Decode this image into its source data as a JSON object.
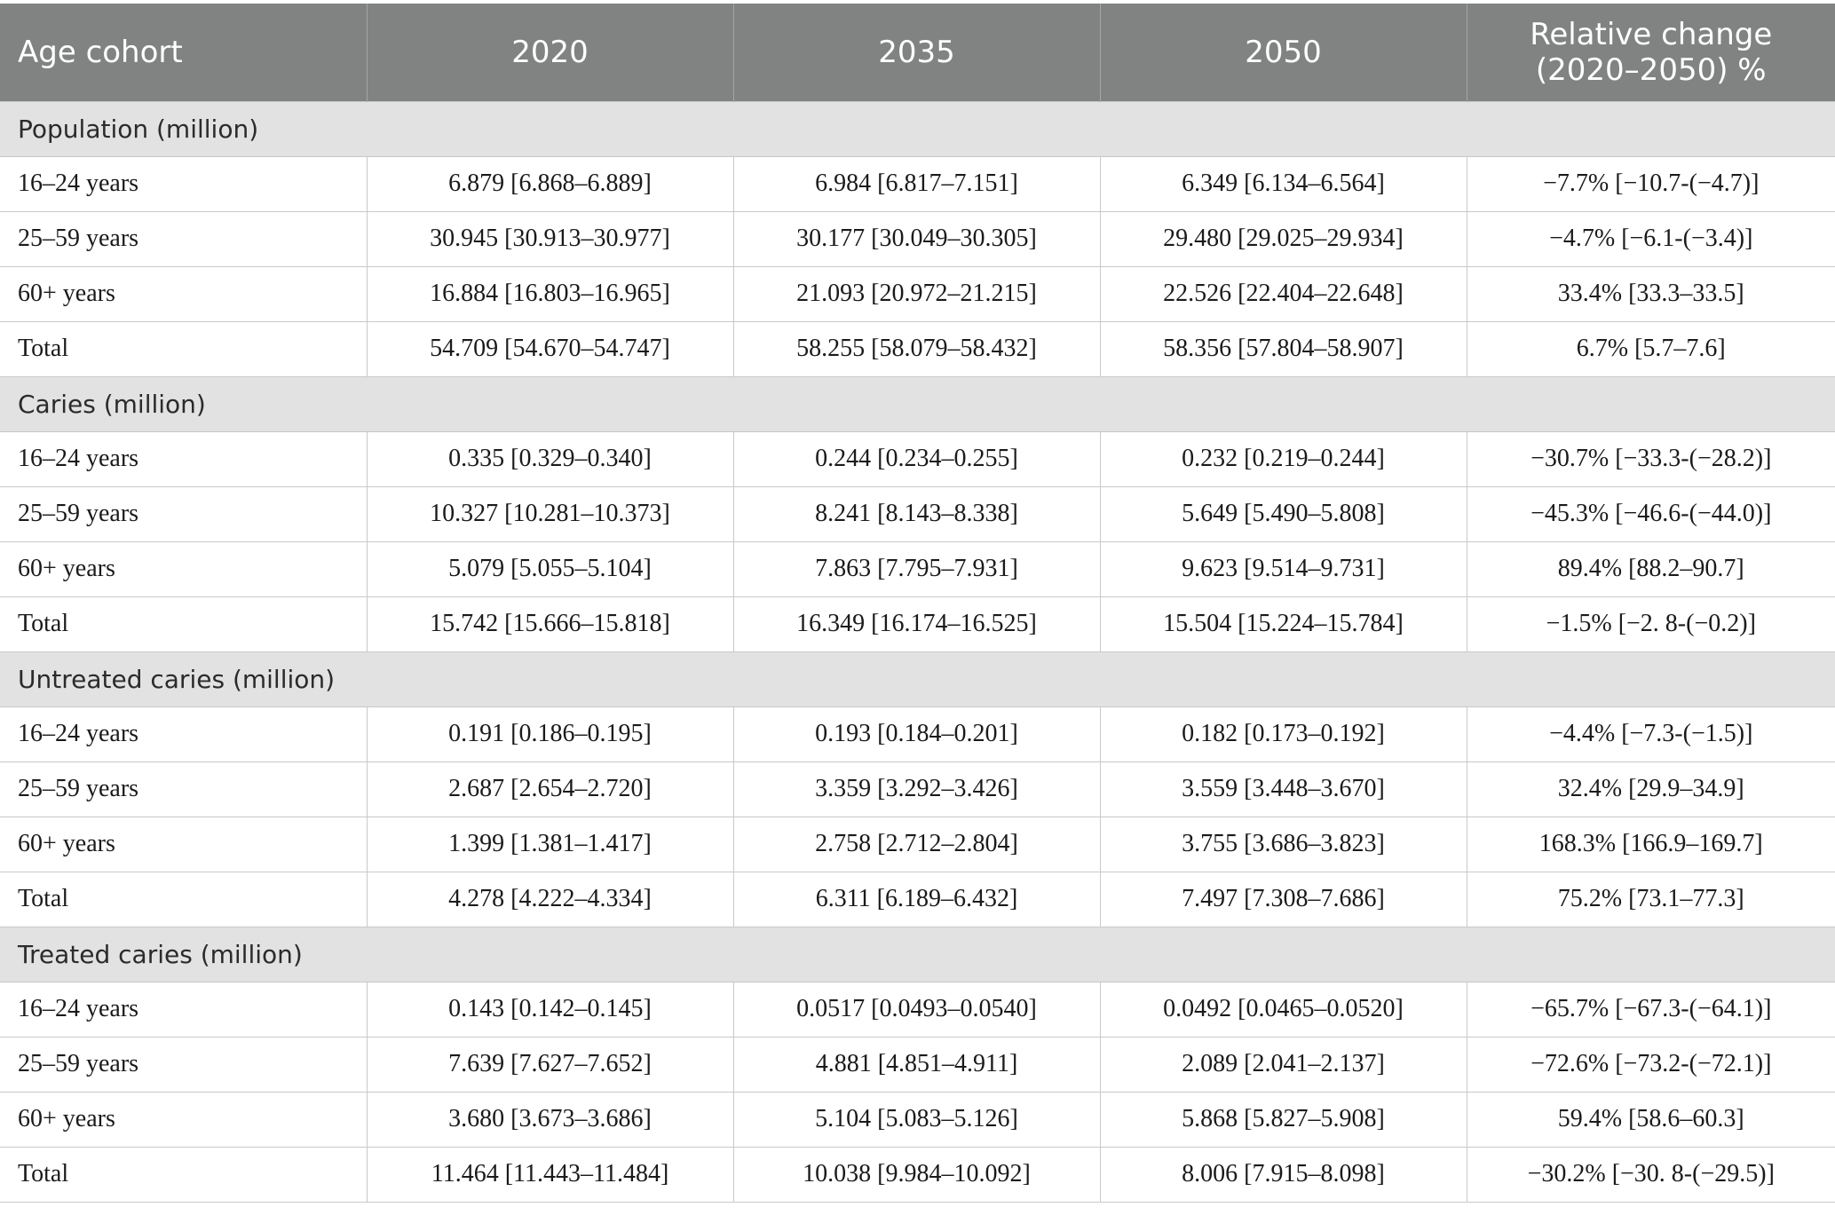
{
  "table": {
    "headers": [
      "Age cohort",
      "2020",
      "2035",
      "2050",
      "Relative change\n(2020–2050) %"
    ],
    "header_rel_line1": "Relative change",
    "header_rel_line2": "(2020–2050) %",
    "sections": [
      {
        "title": "Population (million)",
        "rows": [
          [
            "16–24 years",
            "6.879 [6.868–6.889]",
            "6.984 [6.817–7.151]",
            "6.349 [6.134–6.564]",
            "−7.7% [−10.7-(−4.7)]"
          ],
          [
            "25–59 years",
            "30.945 [30.913–30.977]",
            "30.177 [30.049–30.305]",
            "29.480 [29.025–29.934]",
            "−4.7% [−6.1-(−3.4)]"
          ],
          [
            "60+ years",
            "16.884 [16.803–16.965]",
            "21.093 [20.972–21.215]",
            "22.526 [22.404–22.648]",
            "33.4% [33.3–33.5]"
          ],
          [
            "Total",
            "54.709 [54.670–54.747]",
            "58.255 [58.079–58.432]",
            "58.356 [57.804–58.907]",
            "6.7% [5.7–7.6]"
          ]
        ]
      },
      {
        "title": "Caries (million)",
        "rows": [
          [
            "16–24 years",
            "0.335 [0.329–0.340]",
            "0.244 [0.234–0.255]",
            "0.232 [0.219–0.244]",
            "−30.7% [−33.3-(−28.2)]"
          ],
          [
            "25–59 years",
            "10.327 [10.281–10.373]",
            "8.241 [8.143–8.338]",
            "5.649 [5.490–5.808]",
            "−45.3% [−46.6-(−44.0)]"
          ],
          [
            "60+ years",
            "5.079 [5.055–5.104]",
            "7.863 [7.795–7.931]",
            "9.623 [9.514–9.731]",
            "89.4% [88.2–90.7]"
          ],
          [
            "Total",
            "15.742 [15.666–15.818]",
            "16.349 [16.174–16.525]",
            "15.504 [15.224–15.784]",
            "−1.5% [−2. 8-(−0.2)]"
          ]
        ]
      },
      {
        "title": "Untreated caries (million)",
        "rows": [
          [
            "16–24 years",
            "0.191 [0.186–0.195]",
            "0.193 [0.184–0.201]",
            "0.182 [0.173–0.192]",
            "−4.4% [−7.3-(−1.5)]"
          ],
          [
            "25–59 years",
            "2.687 [2.654–2.720]",
            "3.359 [3.292–3.426]",
            "3.559 [3.448–3.670]",
            "32.4% [29.9–34.9]"
          ],
          [
            "60+ years",
            "1.399 [1.381–1.417]",
            "2.758 [2.712–2.804]",
            "3.755 [3.686–3.823]",
            "168.3% [166.9–169.7]"
          ],
          [
            "Total",
            "4.278 [4.222–4.334]",
            "6.311 [6.189–6.432]",
            "7.497 [7.308–7.686]",
            "75.2% [73.1–77.3]"
          ]
        ]
      },
      {
        "title": "Treated caries (million)",
        "rows": [
          [
            "16–24 years",
            "0.143 [0.142–0.145]",
            "0.0517 [0.0493–0.0540]",
            "0.0492 [0.0465–0.0520]",
            "−65.7% [−67.3-(−64.1)]"
          ],
          [
            "25–59 years",
            "7.639 [7.627–7.652]",
            "4.881 [4.851–4.911]",
            "2.089 [2.041–2.137]",
            "−72.6% [−73.2-(−72.1)]"
          ],
          [
            "60+ years",
            "3.680 [3.673–3.686]",
            "5.104 [5.083–5.126]",
            "5.868 [5.827–5.908]",
            "59.4% [58.6–60.3]"
          ],
          [
            "Total",
            "11.464 [11.443–11.484]",
            "10.038 [9.984–10.092]",
            "8.006 [7.915–8.098]",
            "−30.2% [−30. 8-(−29.5)]"
          ]
        ]
      }
    ]
  }
}
